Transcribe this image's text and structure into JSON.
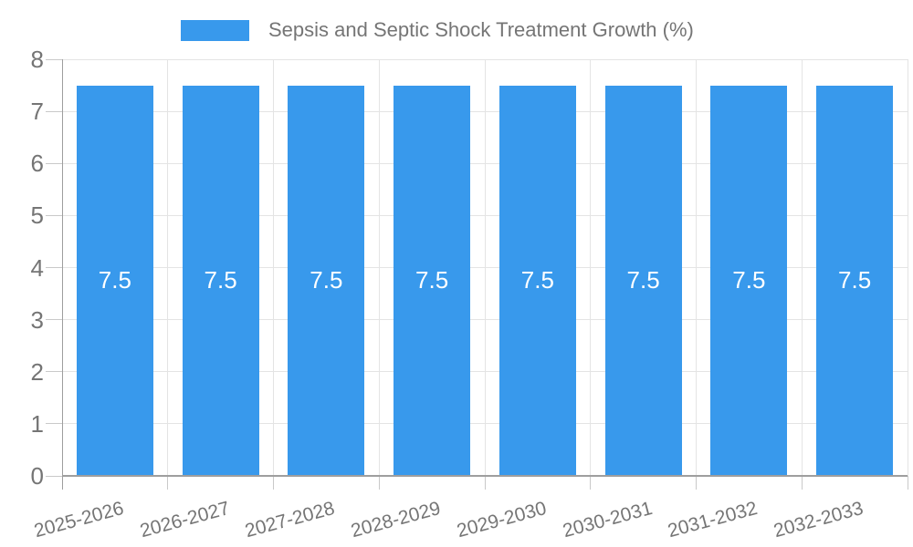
{
  "chart_data": {
    "type": "bar",
    "legend": "Sepsis and Septic Shock Treatment Growth (%)",
    "legend_position": "top",
    "categories": [
      "2025-2026",
      "2026-2027",
      "2027-2028",
      "2028-2029",
      "2029-2030",
      "2030-2031",
      "2031-2032",
      "2032-2033"
    ],
    "values": [
      7.5,
      7.5,
      7.5,
      7.5,
      7.5,
      7.5,
      7.5,
      7.5
    ],
    "bar_labels": [
      "7.5",
      "7.5",
      "7.5",
      "7.5",
      "7.5",
      "7.5",
      "7.5",
      "7.5"
    ],
    "xlabel": "",
    "ylabel": "",
    "ylim": [
      0,
      8
    ],
    "y_ticks": [
      0,
      1,
      2,
      3,
      4,
      5,
      6,
      7,
      8
    ],
    "grid": true,
    "colors": {
      "bar": "#3899EC",
      "grid": "#e4e4e4",
      "axis": "#9e9e9e",
      "tick": "#c9c9c9",
      "axis_text": "#757575",
      "bar_label_text": "#ffffff",
      "background": "#ffffff"
    }
  }
}
